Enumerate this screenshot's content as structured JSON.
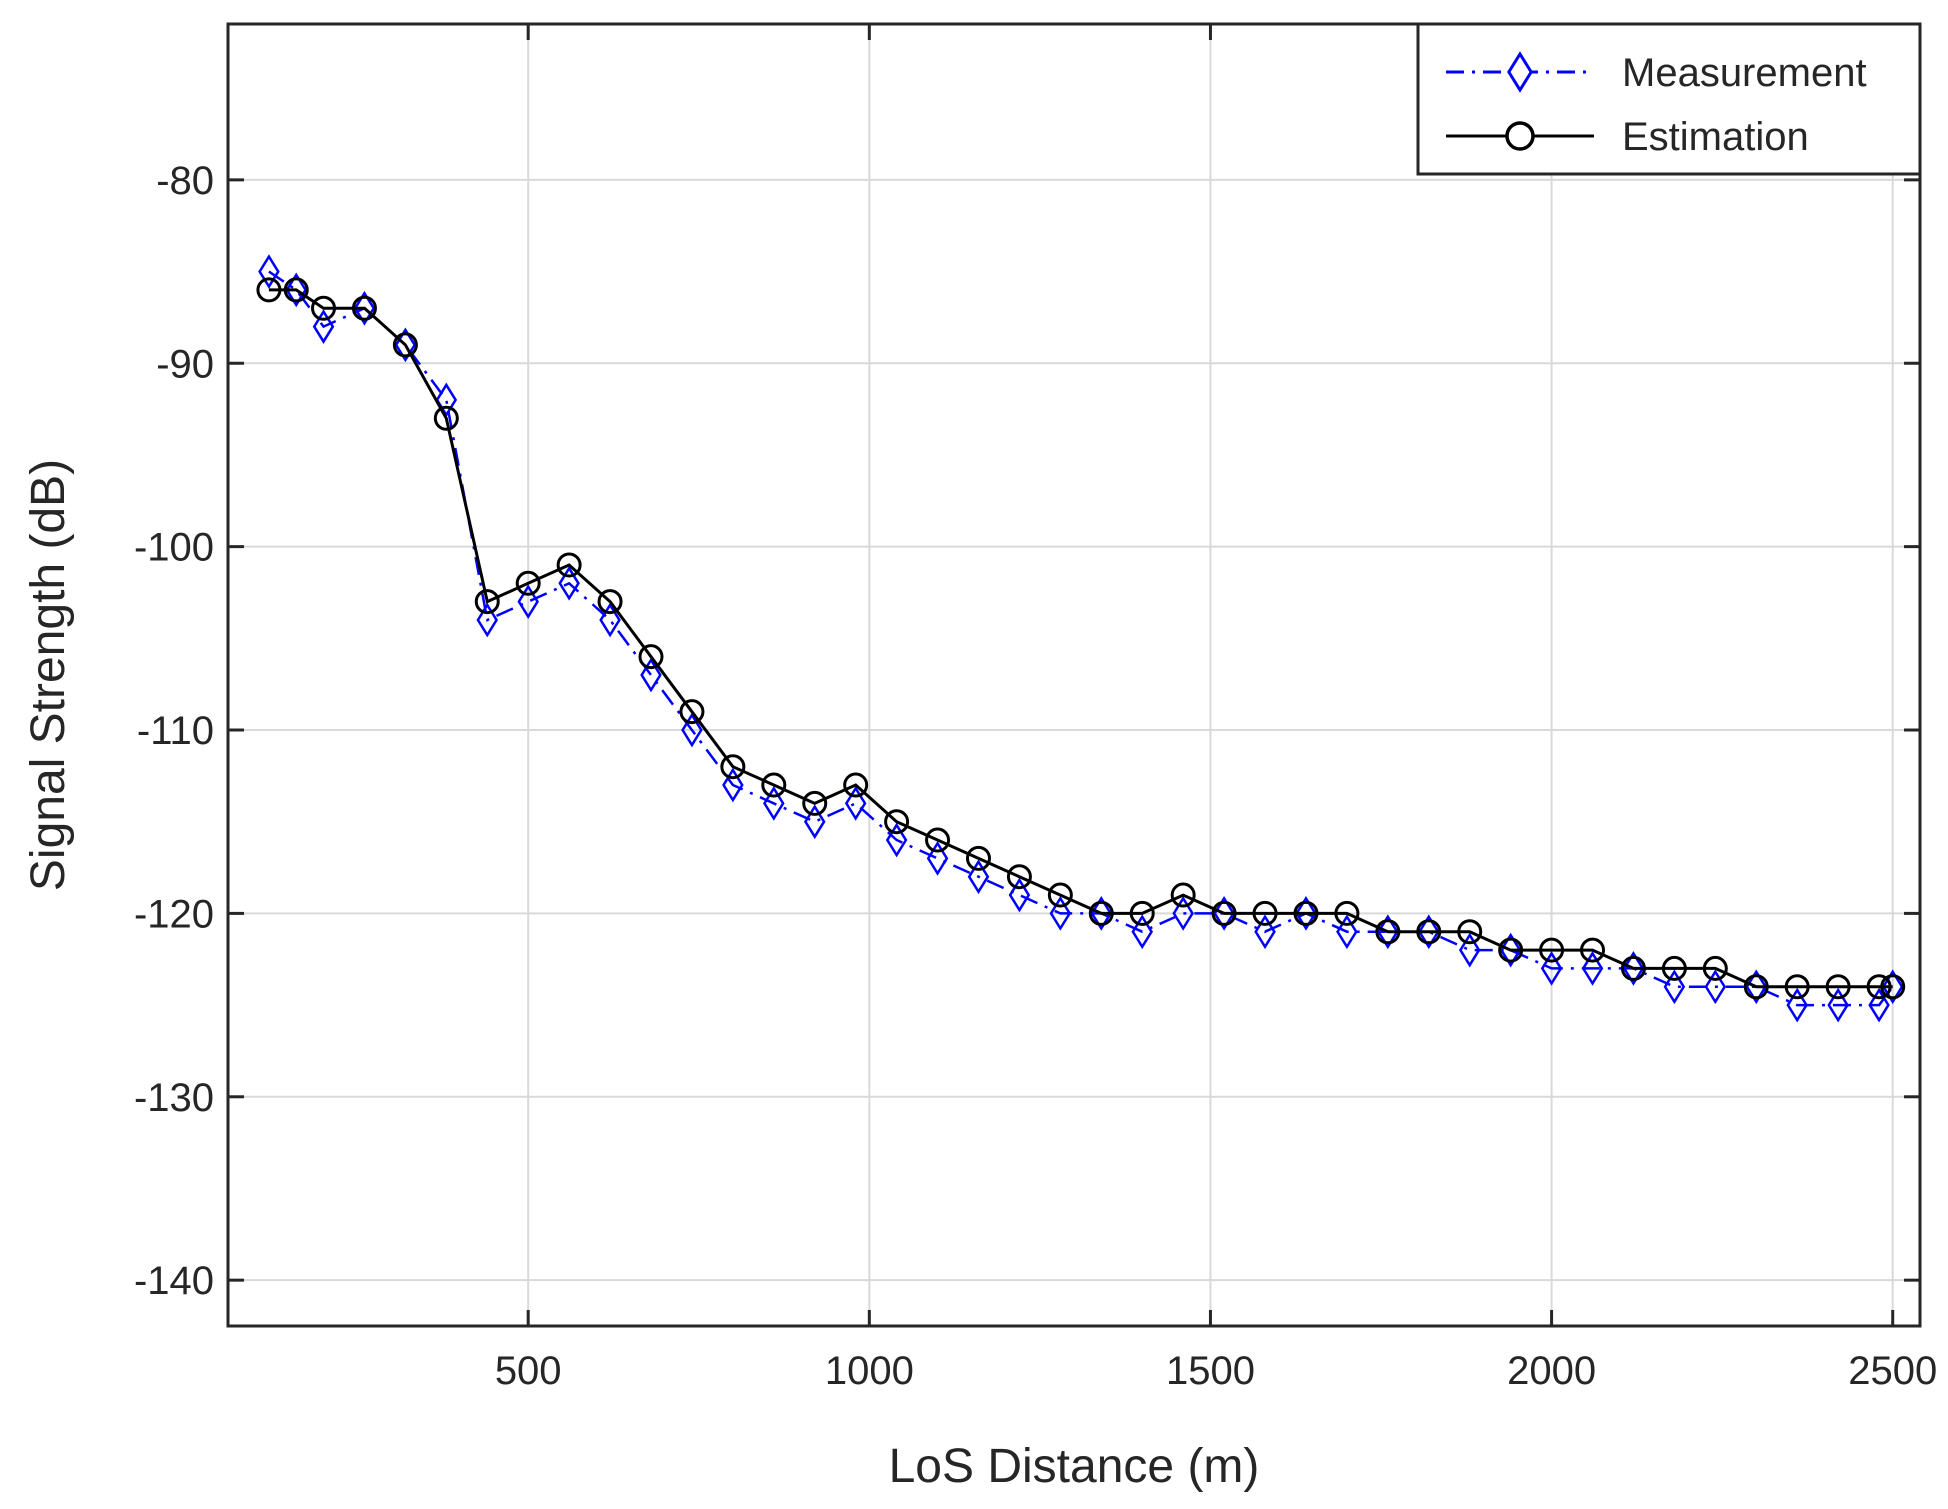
{
  "chart_data": {
    "type": "line",
    "xlabel": "LoS Distance (m)",
    "ylabel": "Signal Strength (dB)",
    "xlim": [
      60,
      2540
    ],
    "ylim": [
      -142.5,
      -71.5
    ],
    "xticks": [
      500,
      1000,
      1500,
      2000,
      2500
    ],
    "yticks": [
      -140,
      -130,
      -120,
      -110,
      -100,
      -90,
      -80
    ],
    "grid": true,
    "legend": {
      "position": "top-right"
    },
    "series": [
      {
        "name": "Measurement",
        "color": "#0000ff",
        "line_style": "dash-dot",
        "marker": "diamond",
        "x": [
          120,
          160,
          200,
          260,
          320,
          380,
          440,
          500,
          560,
          620,
          680,
          740,
          800,
          860,
          920,
          980,
          1040,
          1100,
          1160,
          1220,
          1280,
          1340,
          1400,
          1460,
          1520,
          1580,
          1640,
          1700,
          1760,
          1820,
          1880,
          1940,
          2000,
          2060,
          2120,
          2180,
          2240,
          2300,
          2360,
          2420,
          2480,
          2500
        ],
        "y": [
          -85,
          -86,
          -88,
          -87,
          -89,
          -92,
          -104,
          -103,
          -102,
          -104,
          -107,
          -110,
          -113,
          -114,
          -115,
          -114,
          -116,
          -117,
          -118,
          -119,
          -120,
          -120,
          -121,
          -120,
          -120,
          -121,
          -120,
          -121,
          -121,
          -121,
          -122,
          -122,
          -123,
          -123,
          -123,
          -124,
          -124,
          -124,
          -125,
          -125,
          -125,
          -124
        ]
      },
      {
        "name": "Estimation",
        "color": "#000000",
        "line_style": "solid",
        "marker": "circle",
        "x": [
          120,
          160,
          200,
          260,
          320,
          380,
          440,
          500,
          560,
          620,
          680,
          740,
          800,
          860,
          920,
          980,
          1040,
          1100,
          1160,
          1220,
          1280,
          1340,
          1400,
          1460,
          1520,
          1580,
          1640,
          1700,
          1760,
          1820,
          1880,
          1940,
          2000,
          2060,
          2120,
          2180,
          2240,
          2300,
          2360,
          2420,
          2480,
          2500
        ],
        "y": [
          -86,
          -86,
          -87,
          -87,
          -89,
          -93,
          -103,
          -102,
          -101,
          -103,
          -106,
          -109,
          -112,
          -113,
          -114,
          -113,
          -115,
          -116,
          -117,
          -118,
          -119,
          -120,
          -120,
          -119,
          -120,
          -120,
          -120,
          -120,
          -121,
          -121,
          -121,
          -122,
          -122,
          -122,
          -123,
          -123,
          -123,
          -124,
          -124,
          -124,
          -124,
          -124
        ]
      }
    ]
  }
}
